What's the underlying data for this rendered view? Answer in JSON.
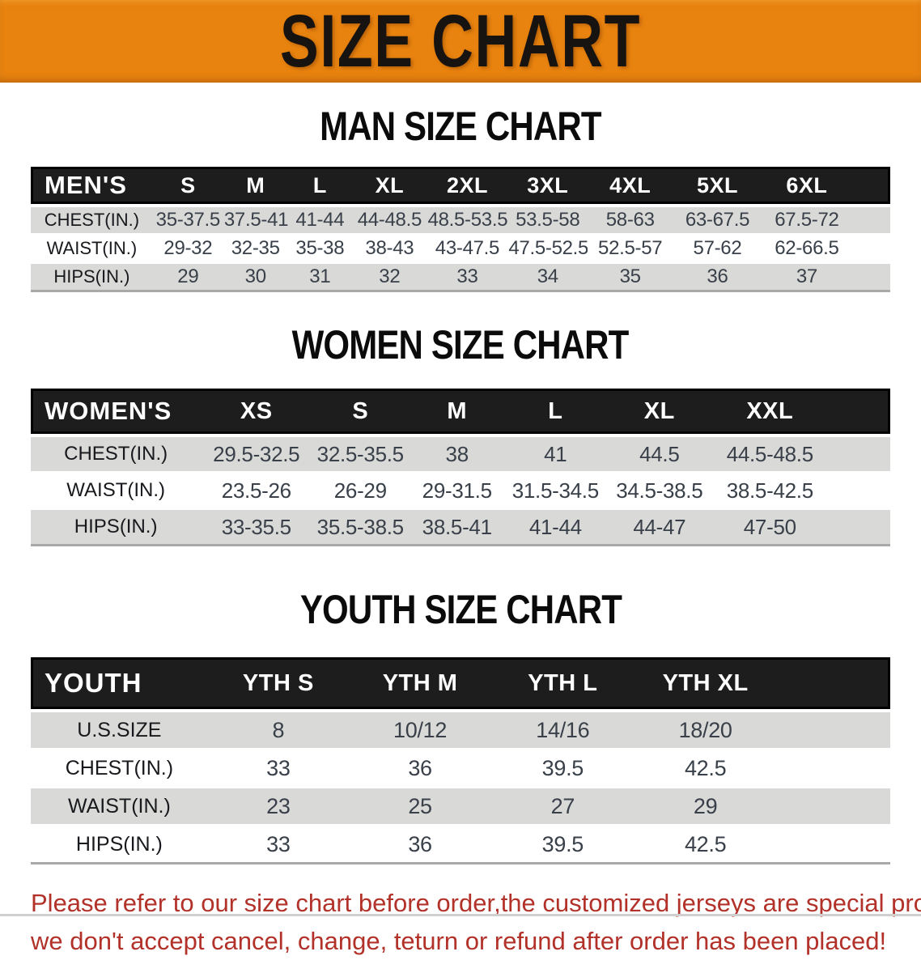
{
  "banner": {
    "title": "SIZE CHART"
  },
  "colors": {
    "banner_bg": "#e8830f",
    "header_band": "#1d1d1d",
    "row_gray": "#d9d9d7",
    "value_text": "#394049",
    "disclaimer_red": "#b23129"
  },
  "sections": [
    {
      "heading": "MAN SIZE CHART",
      "table": {
        "label": "MEN'S",
        "columns": [
          "S",
          "M",
          "L",
          "XL",
          "2XL",
          "3XL",
          "4XL",
          "5XL",
          "6XL"
        ],
        "rows": [
          {
            "label": "CHEST(IN.)",
            "values": [
              "35-37.5",
              "37.5-41",
              "41-44",
              "44-48.5",
              "48.5-53.5",
              "53.5-58",
              "58-63",
              "63-67.5",
              "67.5-72"
            ]
          },
          {
            "label": "WAIST(IN.)",
            "values": [
              "29-32",
              "32-35",
              "35-38",
              "38-43",
              "43-47.5",
              "47.5-52.5",
              "52.5-57",
              "57-62",
              "62-66.5"
            ]
          },
          {
            "label": "HIPS(IN.)",
            "values": [
              "29",
              "30",
              "31",
              "32",
              "33",
              "34",
              "35",
              "36",
              "37"
            ]
          }
        ]
      }
    },
    {
      "heading": "WOMEN SIZE CHART",
      "table": {
        "label": "WOMEN'S",
        "columns": [
          "XS",
          "S",
          "M",
          "L",
          "XL",
          "XXL"
        ],
        "rows": [
          {
            "label": "CHEST(IN.)",
            "values": [
              "29.5-32.5",
              "32.5-35.5",
              "38",
              "41",
              "44.5",
              "44.5-48.5"
            ]
          },
          {
            "label": "WAIST(IN.)",
            "values": [
              "23.5-26",
              "26-29",
              "29-31.5",
              "31.5-34.5",
              "34.5-38.5",
              "38.5-42.5"
            ]
          },
          {
            "label": "HIPS(IN.)",
            "values": [
              "33-35.5",
              "35.5-38.5",
              "38.5-41",
              "41-44",
              "44-47",
              "47-50"
            ]
          }
        ]
      }
    },
    {
      "heading": "YOUTH SIZE CHART",
      "table": {
        "label": "YOUTH",
        "columns": [
          "YTH S",
          "YTH M",
          "YTH L",
          "YTH XL"
        ],
        "rows": [
          {
            "label": "U.S.SIZE",
            "values": [
              "8",
              "10/12",
              "14/16",
              "18/20"
            ]
          },
          {
            "label": "CHEST(IN.)",
            "values": [
              "33",
              "36",
              "39.5",
              "42.5"
            ]
          },
          {
            "label": "WAIST(IN.)",
            "values": [
              "23",
              "25",
              "27",
              "29"
            ]
          },
          {
            "label": "HIPS(IN.)",
            "values": [
              "33",
              "36",
              "39.5",
              "42.5"
            ]
          }
        ]
      }
    }
  ],
  "disclaimer": {
    "line1": "Please refer to our size chart before order,the customized jerseys are special products,",
    "line2": "we don't accept cancel, change, teturn or refund after order has been placed!"
  }
}
